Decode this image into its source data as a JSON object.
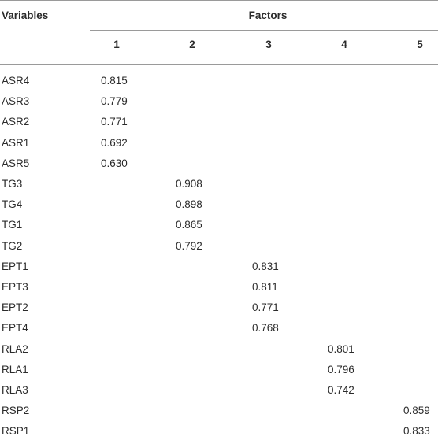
{
  "table": {
    "header": {
      "variables": "Variables",
      "factors": "Factors",
      "columns": [
        "1",
        "2",
        "3",
        "4",
        "5"
      ]
    },
    "rows": [
      [
        "ASR4",
        "0.815",
        null,
        null,
        null,
        null
      ],
      [
        "ASR3",
        "0.779",
        null,
        null,
        null,
        null
      ],
      [
        "ASR2",
        "0.771",
        null,
        null,
        null,
        null
      ],
      [
        "ASR1",
        "0.692",
        null,
        null,
        null,
        null
      ],
      [
        "ASR5",
        "0.630",
        null,
        null,
        null,
        null
      ],
      [
        "TG3",
        null,
        "0.908",
        null,
        null,
        null
      ],
      [
        "TG4",
        null,
        "0.898",
        null,
        null,
        null
      ],
      [
        "TG1",
        null,
        "0.865",
        null,
        null,
        null
      ],
      [
        "TG2",
        null,
        "0.792",
        null,
        null,
        null
      ],
      [
        "EPT1",
        null,
        null,
        "0.831",
        null,
        null
      ],
      [
        "EPT3",
        null,
        null,
        "0.811",
        null,
        null
      ],
      [
        "EPT2",
        null,
        null,
        "0.771",
        null,
        null
      ],
      [
        "EPT4",
        null,
        null,
        "0.768",
        null,
        null
      ],
      [
        "RLA2",
        null,
        null,
        null,
        "0.801",
        null
      ],
      [
        "RLA1",
        null,
        null,
        null,
        "0.796",
        null
      ],
      [
        "RLA3",
        null,
        null,
        null,
        "0.742",
        null
      ],
      [
        "RSP2",
        null,
        null,
        null,
        null,
        "0.859"
      ],
      [
        "RSP1",
        null,
        null,
        null,
        null,
        "0.833"
      ]
    ]
  }
}
